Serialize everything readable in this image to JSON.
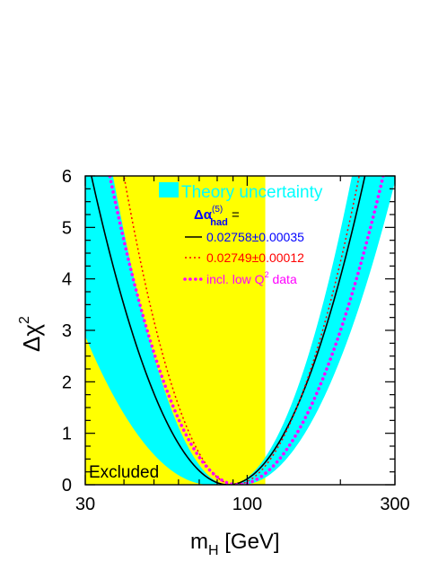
{
  "chart_data": {
    "type": "line",
    "x_scale": "log",
    "xlim": [
      30,
      300
    ],
    "ylim": [
      0,
      6
    ],
    "x_ticks": [
      "30",
      "100",
      "300"
    ],
    "y_ticks": [
      "0",
      "1",
      "2",
      "3",
      "4",
      "5",
      "6"
    ],
    "xlabel": {
      "main": "m",
      "sub": "H",
      "rest": " [GeV]"
    },
    "ylabel": {
      "main": "Δχ",
      "sup": "2"
    },
    "excluded": {
      "label": "Excluded",
      "x_max": 114.4,
      "color": "#ffff00"
    },
    "band": {
      "label": "Theory uncertainty",
      "color": "#00ffff",
      "lower_min_x": 76,
      "upper_min_x": 96,
      "lower_half_width_at_6": 0.436,
      "upper_half_width_at_6": 0.421
    },
    "legend_header": {
      "main": "Δα",
      "sup": "(5)",
      "sub": "had",
      "rest": " ="
    },
    "series": [
      {
        "name": "0.02758±0.00035",
        "style": "solid",
        "color": "#000000",
        "min_x": 87,
        "left_x_at_6": 31.4,
        "right_x_at_6": 240,
        "text_color": "#0000ff"
      },
      {
        "name": "0.02749±0.00012",
        "style": "dotted",
        "color": "#ff0000",
        "min_x": 91,
        "left_x_at_6": 40,
        "right_x_at_6": 230,
        "text_color": "#ff0000"
      },
      {
        "name": "incl. low Q² data",
        "name_parts": {
          "main": "incl. low Q",
          "sup": "2",
          "rest": " data"
        },
        "style": "dotted-heavy",
        "color": "#ff00ff",
        "min_x": 93,
        "left_x_at_6": 36,
        "right_x_at_6": 275,
        "text_color": "#ff00ff"
      }
    ]
  }
}
